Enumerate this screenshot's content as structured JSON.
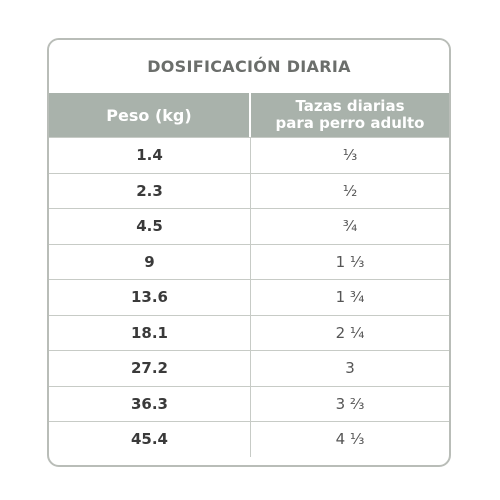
{
  "table": {
    "title": "DOSIFICACIÓN DIARIA",
    "header": {
      "weight": "Peso (kg)",
      "cups_line1": "Tazas diarias",
      "cups_line2": "para perro adulto"
    },
    "rows": [
      {
        "weight": "1.4",
        "cups": "¹⁄₃"
      },
      {
        "weight": "2.3",
        "cups": "¹⁄₂"
      },
      {
        "weight": "4.5",
        "cups": "³⁄₄"
      },
      {
        "weight": "9",
        "cups": "1 ¹⁄₃"
      },
      {
        "weight": "13.6",
        "cups": "1 ³⁄₄"
      },
      {
        "weight": "18.1",
        "cups": "2 ¹⁄₄"
      },
      {
        "weight": "27.2",
        "cups": "3"
      },
      {
        "weight": "36.3",
        "cups": "3 ²⁄₃"
      },
      {
        "weight": "45.4",
        "cups": "4 ¹⁄₃"
      }
    ]
  }
}
